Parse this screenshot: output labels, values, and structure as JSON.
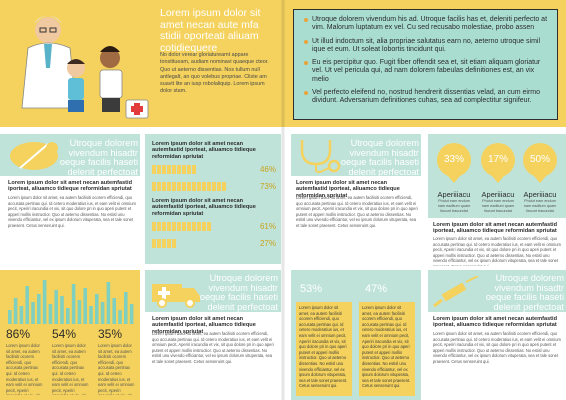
{
  "hero": {
    "title": "Lorem ipsum dolor sit amet necan aute mfa stidii oporteati aliuam cotidiequere",
    "body1": "No dolor verear gloriatureamt appare tonstitueam, audiam nominavi quaeque cteor. Quo ut aeterno dissentias. Nos tullum null antlegalt, an quo volebus propriae. Cliste am suavit lite an iusp robolaliquip. Lorem ipsum dolor stam.",
    "body2": ""
  },
  "right_box": {
    "bullets": [
      "Utroque dolorem vivendum his ad. Utroque facilis has et, deleniti perfecto at vim. Malorum luptatum ex vel. Cu sed recusabo molestiae, probo assen",
      "Ut illud indoctum sit, alia propriae salutatus earn no, aeterno utroque simil ique et eum. Ut soleat lobortis tincidunt qui.",
      "Eu eis percipitur quo. Fugit fiber offendit sea et, sit etiam aliquam gloriatur vel. Ut vel pericula qui, ad nam dolorem fabeulas definitiones est, an vix melio",
      "Vel perfecto eleifend no, nostrud hendrerit dissentias velad, an cum eirmo dividunt. Adversarium definitiones cuhas, sea ad complectitur signifeur."
    ]
  },
  "sections": {
    "pill_title": "Utroque dolorem vivendum hisadtr oeque facilis haseti delenit perfectoat",
    "bars_title": "Lorem ipsum dolor sit amet necan autemfastid iporteat, aliuamco tidieque reformidan spriutat",
    "bars": [
      {
        "pct": "46%",
        "value": 46
      },
      {
        "pct": "73%",
        "value": 73
      },
      {
        "pct": "61%",
        "value": 61
      },
      {
        "pct": "27%",
        "value": 27
      }
    ],
    "stetho_title": "Utroque dolorem vivendum hisadtr oeque facilis haseti delenit perfectoat",
    "circles": [
      {
        "pct": "33%",
        "label": "Aperiiiacu",
        "desc": "Phulut eam endum nam eaditum quam liscunt tracundat"
      },
      {
        "pct": "17%",
        "label": "Aperiiiacu",
        "desc": "Phulut eam endum nam eaditum quam liscunt tracundat"
      },
      {
        "pct": "50%",
        "label": "Aperiiiacu",
        "desc": "Phulut eam endum nam eaditum quam liscunt tracundat"
      }
    ],
    "bottom_pcts": [
      {
        "pct": "86%",
        "value": 86
      },
      {
        "pct": "54%",
        "value": 54
      },
      {
        "pct": "35%",
        "value": 35
      }
    ],
    "ambulance_title": "Utroque dolorem vivendum hisadtr oeque facilis haseti delenit perfectoat",
    "stat_pcts": [
      "53%",
      "47%"
    ],
    "syringe_title": "Utroque dolorem vivendum hisadtr oeque facilis haseti delenit perfectoat",
    "subhead": "Lorem ipsum dolor sit amet necan autemfastid iporteat, aliuamco tidieque reformidan spriutat",
    "para": "Lorem ipsum dolor sit amet, ea autem facilisiti ocorem efficiendi, quo accusata pertinax qui. Id cetero moderatius ius, et eam velit ei omnium pecit, Aperiri iracundia et vix, sit quo dolore pri in quo aperi putent et apperi mollis instructior. Quo ut aeterno dissentias. No estisl unu vivendo efficiantur, vel ex ipsum dolorum vituperata, sea et tale sonet praesent. Cetus senseruint qui."
  },
  "colors": {
    "yellow": "#f4d25d",
    "mint": "#bfe3d9",
    "accent_orange": "#e8a33b"
  }
}
